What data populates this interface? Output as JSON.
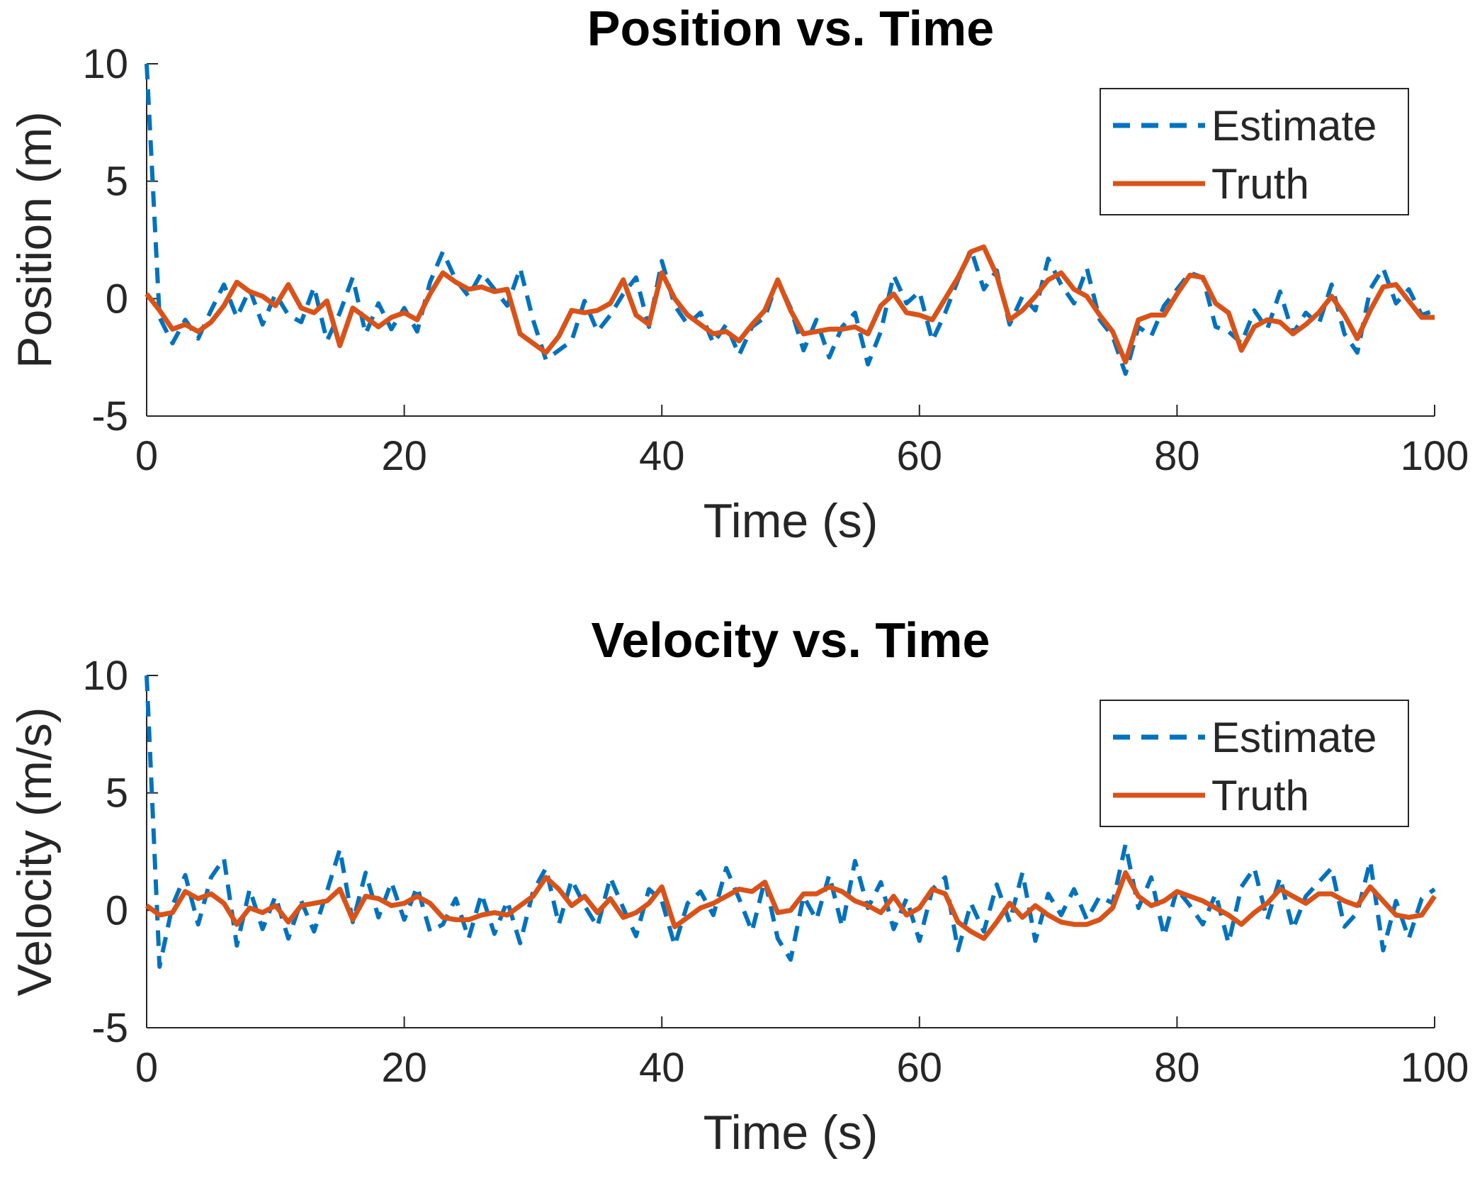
{
  "colors": {
    "estimate": "#0072BD",
    "truth": "#D95319",
    "axis": "#262626",
    "title": "#000000"
  },
  "chart_data": [
    {
      "type": "line",
      "title": "Position vs. Time",
      "xlabel": "Time (s)",
      "ylabel": "Position (m)",
      "xlim": [
        0,
        100
      ],
      "ylim": [
        -5,
        10
      ],
      "xticks": [
        "0",
        "20",
        "40",
        "60",
        "80",
        "100"
      ],
      "yticks": [
        "-5",
        "0",
        "5",
        "10"
      ],
      "grid": false,
      "legend_position": "top-right",
      "legend": [
        "Estimate",
        "Truth"
      ],
      "x": [
        0,
        1,
        2,
        3,
        4,
        5,
        6,
        7,
        8,
        9,
        10,
        11,
        12,
        13,
        14,
        15,
        16,
        17,
        18,
        19,
        20,
        21,
        22,
        23,
        24,
        25,
        26,
        27,
        28,
        29,
        30,
        31,
        32,
        33,
        34,
        35,
        36,
        37,
        38,
        39,
        40,
        41,
        42,
        43,
        44,
        45,
        46,
        47,
        48,
        49,
        50,
        51,
        52,
        53,
        54,
        55,
        56,
        57,
        58,
        59,
        60,
        61,
        62,
        63,
        64,
        65,
        66,
        67,
        68,
        69,
        70,
        71,
        72,
        73,
        74,
        75,
        76,
        77,
        78,
        79,
        80,
        81,
        82,
        83,
        84,
        85,
        86,
        87,
        88,
        89,
        90,
        91,
        92,
        93,
        94,
        95,
        96,
        97,
        98,
        99,
        100
      ],
      "series": [
        {
          "name": "Estimate",
          "style": "dashed",
          "values": [
            10.0,
            -0.8,
            -1.9,
            -0.9,
            -1.7,
            -0.5,
            0.6,
            -0.8,
            0.4,
            -1.1,
            0.2,
            -0.7,
            -1.0,
            0.5,
            -1.8,
            -0.6,
            0.9,
            -1.5,
            -0.2,
            -1.3,
            -0.4,
            -1.4,
            0.7,
            2.0,
            0.8,
            0.1,
            1.1,
            0.4,
            -0.3,
            1.3,
            -0.9,
            -2.6,
            -2.2,
            -1.8,
            -0.1,
            -1.4,
            -0.7,
            0.2,
            0.9,
            -1.2,
            1.6,
            -0.3,
            -1.1,
            -0.6,
            -1.9,
            -1.1,
            -2.4,
            -1.2,
            -0.8,
            0.8,
            -0.4,
            -2.2,
            -0.9,
            -2.5,
            -1.2,
            -0.6,
            -2.8,
            -1.4,
            1.0,
            -0.2,
            0.3,
            -1.8,
            -0.6,
            0.8,
            2.1,
            0.4,
            1.2,
            -1.1,
            0.1,
            -0.5,
            1.7,
            0.6,
            -0.2,
            1.3,
            -0.9,
            -1.6,
            -3.2,
            -1.2,
            -1.6,
            -0.3,
            0.4,
            1.1,
            0.9,
            -1.2,
            -1.4,
            -1.9,
            -0.5,
            -1.3,
            0.3,
            -1.5,
            -0.6,
            -1.1,
            0.6,
            -1.5,
            -2.3,
            0.4,
            1.3,
            -0.2,
            0.4,
            -0.7,
            -0.5
          ]
        },
        {
          "name": "Truth",
          "style": "solid",
          "values": [
            0.2,
            -0.5,
            -1.3,
            -1.1,
            -1.4,
            -1.0,
            -0.3,
            0.7,
            0.3,
            0.1,
            -0.3,
            0.6,
            -0.4,
            -0.6,
            -0.1,
            -2.0,
            -0.4,
            -0.8,
            -1.2,
            -0.8,
            -0.6,
            -0.9,
            0.2,
            1.1,
            0.7,
            0.4,
            0.5,
            0.3,
            0.4,
            -1.5,
            -1.9,
            -2.3,
            -1.6,
            -0.5,
            -0.6,
            -0.5,
            -0.2,
            0.8,
            -0.7,
            -1.1,
            1.1,
            0.0,
            -0.7,
            -1.1,
            -1.5,
            -1.4,
            -1.8,
            -1.1,
            -0.5,
            0.8,
            -0.5,
            -1.5,
            -1.4,
            -1.3,
            -1.3,
            -1.2,
            -1.5,
            -0.3,
            0.2,
            -0.6,
            -0.7,
            -0.9,
            0.0,
            0.9,
            2.0,
            2.2,
            1.0,
            -0.9,
            -0.5,
            0.1,
            0.8,
            1.1,
            0.4,
            0.1,
            -0.7,
            -1.4,
            -2.7,
            -0.9,
            -0.7,
            -0.7,
            0.2,
            1.0,
            0.9,
            -0.2,
            -0.6,
            -2.2,
            -1.2,
            -0.9,
            -1.0,
            -1.5,
            -1.1,
            -0.6,
            0.1,
            -0.7,
            -1.7,
            -0.5,
            0.5,
            0.6,
            -0.1,
            -0.8,
            -0.8
          ]
        }
      ]
    },
    {
      "type": "line",
      "title": "Velocity vs. Time",
      "xlabel": "Time (s)",
      "ylabel": "Velocity (m/s)",
      "xlim": [
        0,
        100
      ],
      "ylim": [
        -5,
        10
      ],
      "xticks": [
        "0",
        "20",
        "40",
        "60",
        "80",
        "100"
      ],
      "yticks": [
        "-5",
        "0",
        "5",
        "10"
      ],
      "grid": false,
      "legend_position": "top-right",
      "legend": [
        "Estimate",
        "Truth"
      ],
      "x": [
        0,
        1,
        2,
        3,
        4,
        5,
        6,
        7,
        8,
        9,
        10,
        11,
        12,
        13,
        14,
        15,
        16,
        17,
        18,
        19,
        20,
        21,
        22,
        23,
        24,
        25,
        26,
        27,
        28,
        29,
        30,
        31,
        32,
        33,
        34,
        35,
        36,
        37,
        38,
        39,
        40,
        41,
        42,
        43,
        44,
        45,
        46,
        47,
        48,
        49,
        50,
        51,
        52,
        53,
        54,
        55,
        56,
        57,
        58,
        59,
        60,
        61,
        62,
        63,
        64,
        65,
        66,
        67,
        68,
        69,
        70,
        71,
        72,
        73,
        74,
        75,
        76,
        77,
        78,
        79,
        80,
        81,
        82,
        83,
        84,
        85,
        86,
        87,
        88,
        89,
        90,
        91,
        92,
        93,
        94,
        95,
        96,
        97,
        98,
        99,
        100
      ],
      "series": [
        {
          "name": "Estimate",
          "style": "dashed",
          "values": [
            10.0,
            -2.4,
            0.2,
            1.5,
            -0.6,
            1.4,
            2.2,
            -1.5,
            0.9,
            -0.8,
            0.6,
            -1.2,
            0.4,
            -0.9,
            0.8,
            2.6,
            -0.5,
            1.6,
            -0.3,
            1.2,
            -0.4,
            1.0,
            -0.9,
            -0.6,
            0.5,
            -1.2,
            0.7,
            -1.0,
            0.4,
            -1.4,
            0.8,
            1.8,
            -0.6,
            1.3,
            0.2,
            -0.7,
            1.4,
            0.1,
            -1.1,
            0.9,
            0.4,
            -1.5,
            0.3,
            0.8,
            -0.2,
            1.8,
            0.5,
            -0.9,
            1.3,
            -1.2,
            -2.1,
            0.6,
            -0.4,
            1.5,
            -0.7,
            2.1,
            0.1,
            1.2,
            -0.8,
            0.5,
            -1.3,
            0.9,
            1.4,
            -1.7,
            0.3,
            -0.9,
            1.1,
            -0.5,
            1.6,
            -1.3,
            0.7,
            -0.2,
            0.9,
            -0.4,
            0.6,
            0.3,
            2.8,
            0.1,
            1.4,
            -1.1,
            0.9,
            0.2,
            -0.6,
            0.7,
            -1.4,
            1.0,
            1.8,
            -0.4,
            1.4,
            -0.8,
            0.6,
            1.2,
            1.8,
            -0.7,
            -0.1,
            2.1,
            -1.7,
            0.4,
            -1.2,
            0.5,
            0.9
          ]
        },
        {
          "name": "Truth",
          "style": "solid",
          "values": [
            0.2,
            -0.2,
            -0.1,
            0.8,
            0.5,
            0.7,
            0.3,
            -0.6,
            0.1,
            -0.1,
            0.2,
            -0.5,
            0.2,
            0.3,
            0.4,
            0.9,
            -0.4,
            0.6,
            0.5,
            0.2,
            0.3,
            0.6,
            0.3,
            -0.3,
            -0.4,
            -0.4,
            -0.2,
            -0.1,
            -0.2,
            0.2,
            0.6,
            1.4,
            0.9,
            0.2,
            0.6,
            -0.1,
            0.5,
            -0.3,
            -0.1,
            0.3,
            1.0,
            -0.7,
            -0.3,
            0.1,
            0.3,
            0.6,
            0.9,
            0.8,
            1.2,
            -0.1,
            0.0,
            0.7,
            0.7,
            1.0,
            0.8,
            0.4,
            0.2,
            -0.1,
            0.6,
            -0.2,
            0.1,
            0.9,
            0.7,
            -0.5,
            -0.9,
            -1.2,
            -0.5,
            0.3,
            -0.3,
            0.2,
            -0.2,
            -0.5,
            -0.6,
            -0.6,
            -0.4,
            0.1,
            1.6,
            0.6,
            0.2,
            0.4,
            0.8,
            0.6,
            0.4,
            0.1,
            -0.2,
            -0.6,
            -0.1,
            0.3,
            0.9,
            0.6,
            0.3,
            0.7,
            0.7,
            0.4,
            0.2,
            1.0,
            0.4,
            -0.2,
            -0.3,
            -0.2,
            0.6
          ]
        }
      ]
    }
  ]
}
